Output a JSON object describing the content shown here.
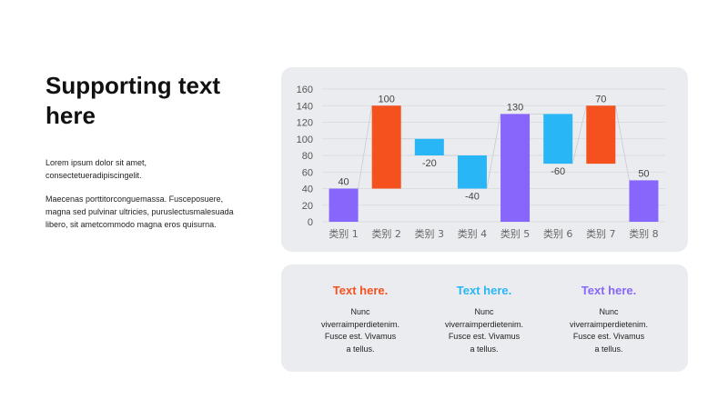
{
  "heading": "Supporting text here",
  "paragraph1": "Lorem ipsum dolor sit amet, consectetueradipiscingelit.",
  "paragraph2": "Maecenas porttitorconguemassa. Fusceposuere, magna sed pulvinar ultricies, puruslectusmalesuada libero, sit ametcommodo magna eros quisurna.",
  "chart_data": {
    "type": "bar",
    "subtype": "waterfall",
    "categories": [
      "类别 1",
      "类别 2",
      "类别 3",
      "类别 4",
      "类别 5",
      "类别 6",
      "类别 7",
      "类别 8"
    ],
    "values": [
      40,
      100,
      -20,
      -40,
      130,
      -60,
      70,
      50
    ],
    "value_labels": [
      "40",
      "100",
      "-20",
      "-40",
      "130",
      "-60",
      "70",
      "50"
    ],
    "ylim": [
      0,
      160
    ],
    "yticks": [
      "0",
      "20",
      "40",
      "60",
      "80",
      "100",
      "120",
      "140",
      "160"
    ],
    "grid": true,
    "colors": {
      "total": "#8766fc",
      "increase": "#f4511e",
      "decrease": "#29b6f6",
      "connector": "#c8cbd2",
      "grid": "#d6d8dd"
    },
    "title": "",
    "xlabel": "",
    "ylabel": ""
  },
  "columns": [
    {
      "title": "Text here.",
      "color": "#f4511e",
      "body": "Nunc\nviverraimperdietenim.\nFusce est. Vivamus\na tellus."
    },
    {
      "title": "Text here.",
      "color": "#29b6f6",
      "body": "Nunc\nviverraimperdietenim.\nFusce est. Vivamus\na tellus."
    },
    {
      "title": "Text here.",
      "color": "#8766fc",
      "body": "Nunc\nviverraimperdietenim.\nFusce est. Vivamus\na tellus."
    }
  ]
}
